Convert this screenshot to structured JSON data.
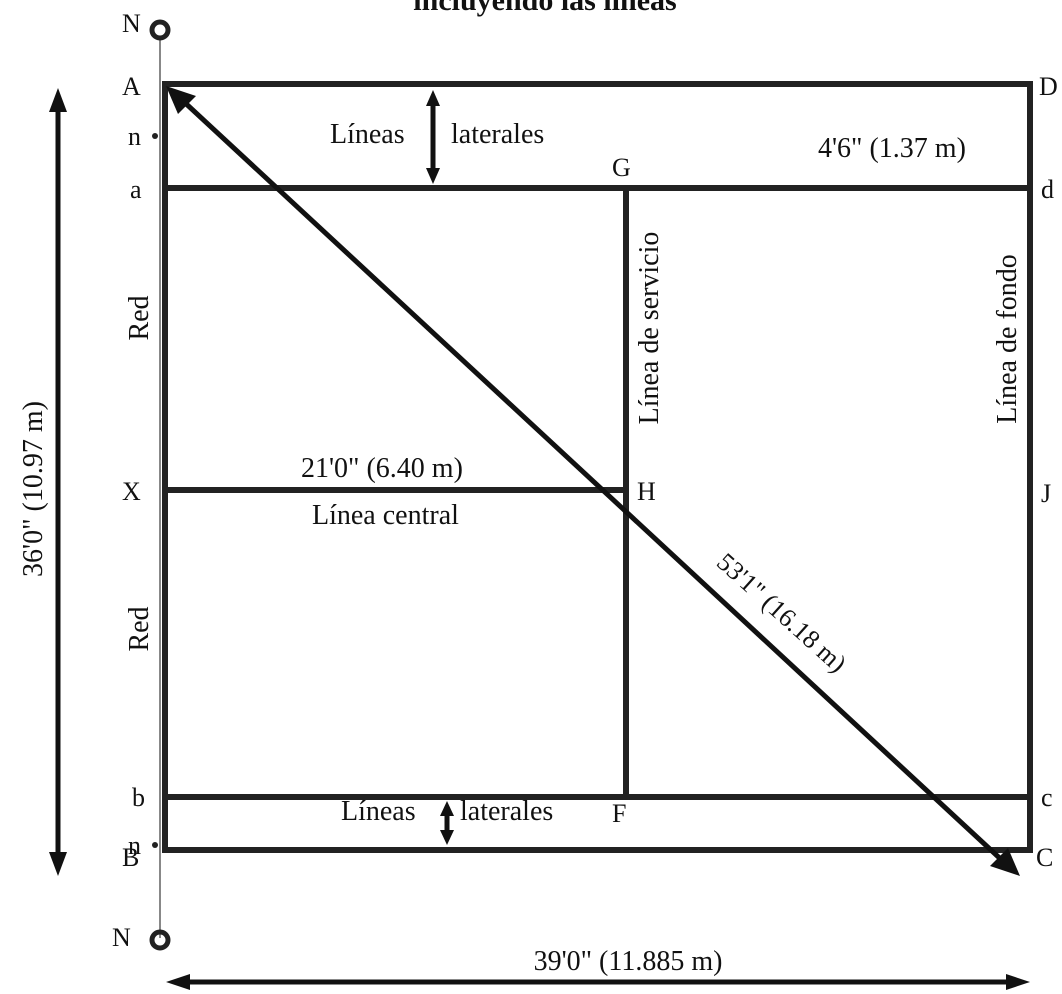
{
  "title_partial": "incluyendo las líneas",
  "points": {
    "A": "A",
    "B": "B",
    "C": "C",
    "D": "D",
    "a": "a",
    "b": "b",
    "c": "c",
    "d": "d",
    "n_top": "n",
    "n_bottom": "n",
    "N_top": "N",
    "N_bottom": "N",
    "G": "G",
    "H": "H",
    "F": "F",
    "X": "X",
    "J": "J"
  },
  "labels": {
    "side_lines_top_left": "Líneas",
    "side_lines_top_right": "laterales",
    "side_lines_bottom_left": "Líneas",
    "side_lines_bottom_right": "laterales",
    "side_width": "4'6\" (1.37 m)",
    "service_line": "Línea de servicio",
    "back_line": "Línea de fondo",
    "net_top": "Red",
    "net_bottom": "Red",
    "center_length": "21'0\" (6.40 m)",
    "center_line": "Línea central",
    "diagonal": "53'1\" (16.18 m)",
    "court_height": "36'0\" (10.97 m)",
    "court_width": "39'0\" (11.885 m)"
  },
  "colors": {
    "line": "#222222",
    "text": "#111111",
    "background": "#ffffff"
  }
}
